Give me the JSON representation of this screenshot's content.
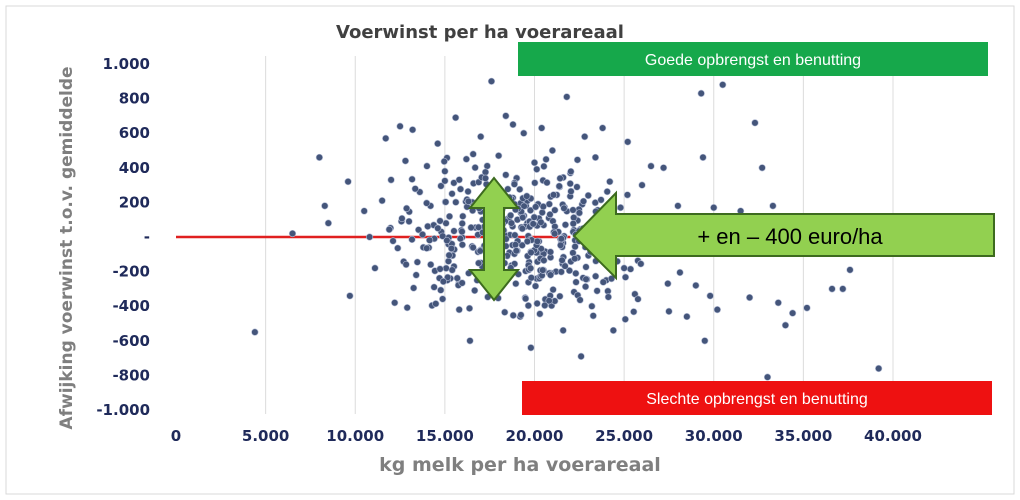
{
  "chart_data": {
    "type": "scatter",
    "title": "Voerwinst per ha voerareaal",
    "xlabel": "kg melk per ha voerareaal",
    "ylabel": "Afwijking voerwinst t.o.v. gemiddelde",
    "xlim": [
      0,
      40000
    ],
    "ylim": [
      -1000,
      1000
    ],
    "x_ticks": [
      0,
      5000,
      10000,
      15000,
      20000,
      25000,
      30000,
      35000,
      40000
    ],
    "x_tick_labels": [
      "0",
      "5.000",
      "10.000",
      "15.000",
      "20.000",
      "25.000",
      "30.000",
      "35.000",
      "40.000"
    ],
    "y_ticks": [
      1000,
      800,
      600,
      400,
      200,
      0,
      -200,
      -400,
      -600,
      -800,
      -1000
    ],
    "y_tick_labels": [
      "1.000",
      "800",
      "600",
      "400",
      "200",
      "-",
      "-200",
      "-400",
      "-600",
      "-800",
      "-1.000"
    ],
    "grid": "vertical",
    "reference_line": {
      "y": 0,
      "x_range": [
        0,
        22000
      ],
      "color": "#e02020"
    },
    "point_color": "#44557a",
    "annotations": {
      "good_banner": {
        "text": "Goede opbrengst en benutting",
        "color": "#16a84b"
      },
      "bad_banner": {
        "text": "Slechte opbrengst en benutting",
        "color": "#ee1111"
      },
      "arrow_label": {
        "text": "+ en – 400 euro/ha",
        "fill": "#92d050",
        "stroke": "#3d6b1f"
      }
    },
    "points": [
      [
        4400,
        -550
      ],
      [
        6500,
        20
      ],
      [
        8000,
        460
      ],
      [
        8300,
        180
      ],
      [
        8500,
        80
      ],
      [
        9700,
        -340
      ],
      [
        9600,
        320
      ],
      [
        10500,
        150
      ],
      [
        10800,
        0
      ],
      [
        11100,
        -180
      ],
      [
        11500,
        210
      ],
      [
        11700,
        570
      ],
      [
        12000,
        330
      ],
      [
        12200,
        -380
      ],
      [
        12500,
        640
      ],
      [
        12800,
        440
      ],
      [
        13000,
        90
      ],
      [
        13200,
        620
      ],
      [
        13400,
        -220
      ],
      [
        13600,
        260
      ],
      [
        13800,
        -60
      ],
      [
        14000,
        410
      ],
      [
        14200,
        180
      ],
      [
        14400,
        -290
      ],
      [
        14600,
        540
      ],
      [
        14800,
        30
      ],
      [
        15000,
        380
      ],
      [
        15200,
        -140
      ],
      [
        15400,
        250
      ],
      [
        15600,
        690
      ],
      [
        15800,
        -420
      ],
      [
        16000,
        120
      ],
      [
        16200,
        450
      ],
      [
        16400,
        -600
      ],
      [
        16600,
        310
      ],
      [
        16800,
        -250
      ],
      [
        17000,
        580
      ],
      [
        17200,
        60
      ],
      [
        17400,
        220
      ],
      [
        17600,
        900
      ],
      [
        17800,
        -320
      ],
      [
        18000,
        470
      ],
      [
        18200,
        160
      ],
      [
        18400,
        700
      ],
      [
        18600,
        -90
      ],
      [
        18800,
        650
      ],
      [
        19000,
        340
      ],
      [
        19200,
        -460
      ],
      [
        19400,
        600
      ],
      [
        19600,
        80
      ],
      [
        19800,
        -640
      ],
      [
        20000,
        430
      ],
      [
        20200,
        190
      ],
      [
        20400,
        630
      ],
      [
        20600,
        -360
      ],
      [
        20800,
        110
      ],
      [
        21000,
        500
      ],
      [
        21200,
        -200
      ],
      [
        21400,
        290
      ],
      [
        21600,
        -540
      ],
      [
        21800,
        810
      ],
      [
        22000,
        370
      ],
      [
        22200,
        40
      ],
      [
        22400,
        -120
      ],
      [
        22600,
        -690
      ],
      [
        22800,
        580
      ],
      [
        23000,
        240
      ],
      [
        23200,
        -400
      ],
      [
        23400,
        460
      ],
      [
        23600,
        150
      ],
      [
        23800,
        630
      ],
      [
        24000,
        -250
      ],
      [
        24200,
        320
      ],
      [
        24400,
        -540
      ],
      [
        24600,
        90
      ],
      [
        24800,
        170
      ],
      [
        25000,
        -180
      ],
      [
        25200,
        550
      ],
      [
        25600,
        -330
      ],
      [
        26000,
        300
      ],
      [
        26500,
        410
      ],
      [
        27000,
        20
      ],
      [
        27200,
        400
      ],
      [
        27500,
        -430
      ],
      [
        28000,
        180
      ],
      [
        28500,
        -460
      ],
      [
        29000,
        -280
      ],
      [
        29300,
        830
      ],
      [
        29400,
        460
      ],
      [
        29500,
        -600
      ],
      [
        29800,
        -340
      ],
      [
        30000,
        170
      ],
      [
        30200,
        -420
      ],
      [
        30500,
        880
      ],
      [
        31000,
        100
      ],
      [
        31500,
        150
      ],
      [
        32000,
        -350
      ],
      [
        32300,
        660
      ],
      [
        32700,
        400
      ],
      [
        33000,
        -810
      ],
      [
        33300,
        180
      ],
      [
        33600,
        -380
      ],
      [
        34000,
        -510
      ],
      [
        34400,
        -440
      ],
      [
        35200,
        -410
      ],
      [
        36600,
        -300
      ],
      [
        37200,
        -300
      ],
      [
        37600,
        -190
      ],
      [
        39200,
        -760
      ]
    ]
  }
}
